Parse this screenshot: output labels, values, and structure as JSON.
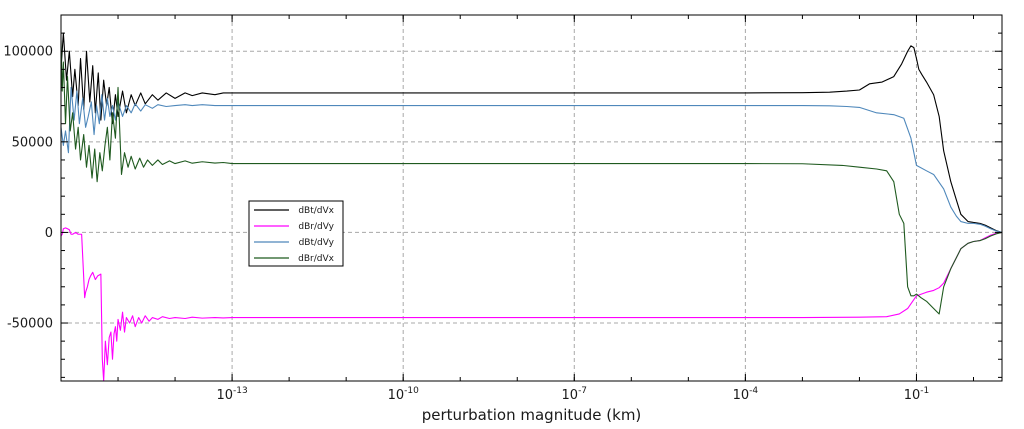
{
  "chart_data": {
    "type": "line",
    "xlabel": "perturbation magnitude (km)",
    "ylabel": "",
    "xscale": "log",
    "xlim": [
      1e-16,
      3.16
    ],
    "ylim": [
      -82000,
      120000
    ],
    "grid": true,
    "legend_position": "center-left",
    "x_ticks": [
      {
        "value": 1e-13,
        "base": "10",
        "exp": "-13"
      },
      {
        "value": 1e-10,
        "base": "10",
        "exp": "-10"
      },
      {
        "value": 1e-07,
        "base": "10",
        "exp": "-7"
      },
      {
        "value": 0.0001,
        "base": "10",
        "exp": "-4"
      },
      {
        "value": 0.1,
        "base": "10",
        "exp": "-1"
      }
    ],
    "y_ticks": [
      {
        "value": 100000,
        "label": "100000"
      },
      {
        "value": 50000,
        "label": "50000"
      },
      {
        "value": 0,
        "label": "0"
      },
      {
        "value": -50000,
        "label": "-50000"
      }
    ],
    "series": [
      {
        "name": "dBt/dVx",
        "color": "#000000",
        "x": [
          1e-16,
          1.1e-16,
          1.25e-16,
          1.4e-16,
          1.6e-16,
          1.75e-16,
          2e-16,
          2.2e-16,
          2.5e-16,
          2.8e-16,
          3.2e-16,
          3.6e-16,
          4e-16,
          4.5e-16,
          5e-16,
          5.6e-16,
          6.3e-16,
          7e-16,
          8e-16,
          9e-16,
          1e-15,
          1.2e-15,
          1.4e-15,
          1.7e-15,
          2e-15,
          2.5e-15,
          3e-15,
          4e-15,
          5e-15,
          7e-15,
          1e-14,
          1.5e-14,
          2e-14,
          3e-14,
          5e-14,
          7e-14,
          1e-13,
          1e-12,
          1e-11,
          1e-10,
          1e-09,
          1e-08,
          1e-07,
          1e-06,
          1e-05,
          0.0001,
          0.001,
          0.003,
          0.006,
          0.01,
          0.015,
          0.025,
          0.04,
          0.055,
          0.07,
          0.08,
          0.09,
          0.1,
          0.11,
          0.125,
          0.15,
          0.2,
          0.25,
          0.3,
          0.4,
          0.5,
          0.6,
          0.8,
          1.0,
          1.3,
          1.6,
          2.0,
          2.5,
          3.16
        ],
        "y": [
          90000,
          110000,
          84000,
          100000,
          75000,
          90000,
          70000,
          96000,
          68000,
          100000,
          72000,
          92000,
          66000,
          88000,
          62000,
          84000,
          70000,
          80000,
          60000,
          76000,
          64000,
          78000,
          66000,
          76000,
          70000,
          77000,
          71000,
          76000,
          73000,
          77000,
          74000,
          77000,
          75500,
          77000,
          76000,
          77000,
          77000,
          77000,
          77000,
          77000,
          77000,
          77000,
          77000,
          77000,
          77000,
          77000,
          77100,
          77400,
          78000,
          78600,
          82000,
          83000,
          86000,
          93000,
          100000,
          103000,
          102000,
          96000,
          90000,
          87000,
          83000,
          76000,
          64000,
          45000,
          28000,
          18000,
          10000,
          6000,
          5500,
          5000,
          4000,
          2500,
          1000,
          0
        ]
      },
      {
        "name": "dBr/dVy",
        "color": "#ff00ff",
        "x": [
          1e-16,
          1.05e-16,
          1.1e-16,
          1.2e-16,
          1.3e-16,
          1.4e-16,
          1.5e-16,
          1.6e-16,
          1.8e-16,
          2e-16,
          2.3e-16,
          2.6e-16,
          2.7e-16,
          2.9e-16,
          3.1e-16,
          3.3e-16,
          3.6e-16,
          4e-16,
          4.4e-16,
          5e-16,
          5.3e-16,
          5.6e-16,
          6e-16,
          6.5e-16,
          7e-16,
          7.5e-16,
          8e-16,
          8.5e-16,
          9e-16,
          9.5e-16,
          1e-15,
          1.1e-15,
          1.2e-15,
          1.3e-15,
          1.4e-15,
          1.6e-15,
          1.8e-15,
          2e-15,
          2.3e-15,
          2.6e-15,
          3e-15,
          3.5e-15,
          4e-15,
          5e-15,
          6e-15,
          8e-15,
          1e-14,
          1.5e-14,
          2e-14,
          3e-14,
          5e-14,
          7e-14,
          1e-13,
          1e-12,
          1e-11,
          1e-10,
          1e-09,
          1e-08,
          1e-07,
          1e-06,
          1e-05,
          0.0001,
          0.001,
          0.01,
          0.03,
          0.05,
          0.07,
          0.1,
          0.15,
          0.2,
          0.25,
          0.3,
          0.4,
          0.5,
          0.6,
          0.8,
          1.0,
          1.3,
          1.6,
          2.0,
          2.5,
          3.16
        ],
        "y": [
          -2000,
          -1000,
          2000,
          2500,
          2000,
          1500,
          -1000,
          -1000,
          0,
          -1000,
          -1000,
          -36000,
          -33000,
          -30000,
          -26000,
          -24000,
          -22000,
          -26000,
          -24000,
          -23000,
          -70000,
          -82000,
          -60000,
          -73000,
          -58000,
          -55000,
          -70000,
          -56000,
          -52000,
          -60000,
          -48000,
          -54000,
          -44000,
          -55000,
          -47000,
          -50000,
          -46000,
          -52000,
          -47000,
          -50000,
          -46000,
          -49000,
          -47000,
          -48000,
          -46500,
          -47500,
          -47000,
          -47500,
          -46800,
          -47300,
          -47000,
          -47200,
          -47000,
          -47000,
          -47000,
          -47000,
          -47000,
          -47000,
          -47000,
          -47000,
          -47000,
          -47000,
          -47000,
          -46800,
          -46500,
          -45000,
          -42000,
          -35000,
          -33000,
          -32000,
          -30500,
          -28000,
          -20000,
          -14000,
          -9000,
          -6000,
          -5000,
          -4500,
          -3000,
          -1500,
          -500,
          0
        ]
      },
      {
        "name": "dBt/dVy",
        "color": "#4f88bb",
        "x": [
          1e-16,
          1.1e-16,
          1.2e-16,
          1.35e-16,
          1.5e-16,
          1.7e-16,
          1.9e-16,
          2.1e-16,
          2.4e-16,
          2.7e-16,
          3e-16,
          3.4e-16,
          3.8e-16,
          4.2e-16,
          4.7e-16,
          5.2e-16,
          5.8e-16,
          6.5e-16,
          7.2e-16,
          8e-16,
          9e-16,
          1e-15,
          1.2e-15,
          1.4e-15,
          1.7e-15,
          2e-15,
          2.5e-15,
          3e-15,
          4e-15,
          5e-15,
          7e-15,
          1e-14,
          1.5e-14,
          2e-14,
          3e-14,
          5e-14,
          1e-13,
          1e-12,
          1e-11,
          1e-10,
          1e-09,
          1e-08,
          1e-07,
          1e-06,
          1e-05,
          0.0001,
          0.001,
          0.003,
          0.006,
          0.01,
          0.02,
          0.04,
          0.06,
          0.08,
          0.1,
          0.15,
          0.2,
          0.3,
          0.4,
          0.5,
          0.6,
          0.8,
          1.0,
          1.3,
          1.6,
          2.0,
          2.5,
          3.16
        ],
        "y": [
          58000,
          48000,
          56000,
          44000,
          80000,
          62000,
          78000,
          60000,
          74000,
          58000,
          64000,
          72000,
          54000,
          70000,
          60000,
          76000,
          62000,
          74000,
          64000,
          70000,
          62000,
          72000,
          64000,
          70000,
          66000,
          71000,
          67000,
          70500,
          68500,
          70500,
          69500,
          70000,
          70500,
          70000,
          70500,
          70000,
          70000,
          70000,
          70000,
          70000,
          70000,
          70000,
          70000,
          70000,
          70000,
          70000,
          70000,
          69900,
          69500,
          69000,
          66000,
          65000,
          63000,
          52000,
          37000,
          34000,
          32000,
          24000,
          14000,
          9000,
          6000,
          5000,
          5000,
          4500,
          3500,
          2000,
          800,
          0
        ]
      },
      {
        "name": "dBr/dVx",
        "color": "#1f5a1f",
        "x": [
          1e-16,
          1.05e-16,
          1.1e-16,
          1.2e-16,
          1.3e-16,
          1.45e-16,
          1.6e-16,
          1.8e-16,
          2e-16,
          2.2e-16,
          2.5e-16,
          2.8e-16,
          3.1e-16,
          3.5e-16,
          3.9e-16,
          4.3e-16,
          4.8e-16,
          5.3e-16,
          5.9e-16,
          6.5e-16,
          7.2e-16,
          8e-16,
          9e-16,
          1e-15,
          1.15e-15,
          1.3e-15,
          1.5e-15,
          1.7e-15,
          2e-15,
          2.4e-15,
          2.8e-15,
          3.3e-15,
          4e-15,
          5e-15,
          6e-15,
          8e-15,
          1e-14,
          1.5e-14,
          2e-14,
          3e-14,
          5e-14,
          7e-14,
          1e-13,
          1e-12,
          1e-11,
          1e-10,
          1e-09,
          1e-08,
          1e-07,
          1e-06,
          1e-05,
          0.0001,
          0.001,
          0.005,
          0.01,
          0.02,
          0.03,
          0.04,
          0.05,
          0.06,
          0.07,
          0.08,
          0.09,
          0.1,
          0.12,
          0.15,
          0.2,
          0.25,
          0.3,
          0.4,
          0.5,
          0.6,
          0.8,
          1.0,
          1.3,
          1.6,
          2.0,
          2.5,
          3.16
        ],
        "y": [
          106000,
          78000,
          94000,
          60000,
          86000,
          56000,
          66000,
          46000,
          58000,
          40000,
          54000,
          36000,
          48000,
          30000,
          46000,
          28000,
          44000,
          34000,
          48000,
          58000,
          40000,
          66000,
          52000,
          80000,
          32000,
          44000,
          36000,
          42000,
          35000,
          41000,
          36000,
          40000,
          37000,
          40000,
          37500,
          39500,
          38000,
          39500,
          38200,
          39000,
          38300,
          38600,
          38000,
          38000,
          38000,
          38000,
          38000,
          38000,
          38000,
          38000,
          38000,
          38000,
          37900,
          37000,
          36000,
          35000,
          34000,
          28000,
          10000,
          5000,
          -30000,
          -35000,
          -35000,
          -34000,
          -36000,
          -38000,
          -42000,
          -45000,
          -30000,
          -20000,
          -14000,
          -9000,
          -6000,
          -5000,
          -4500,
          -3500,
          -2000,
          -800,
          0
        ]
      }
    ]
  }
}
